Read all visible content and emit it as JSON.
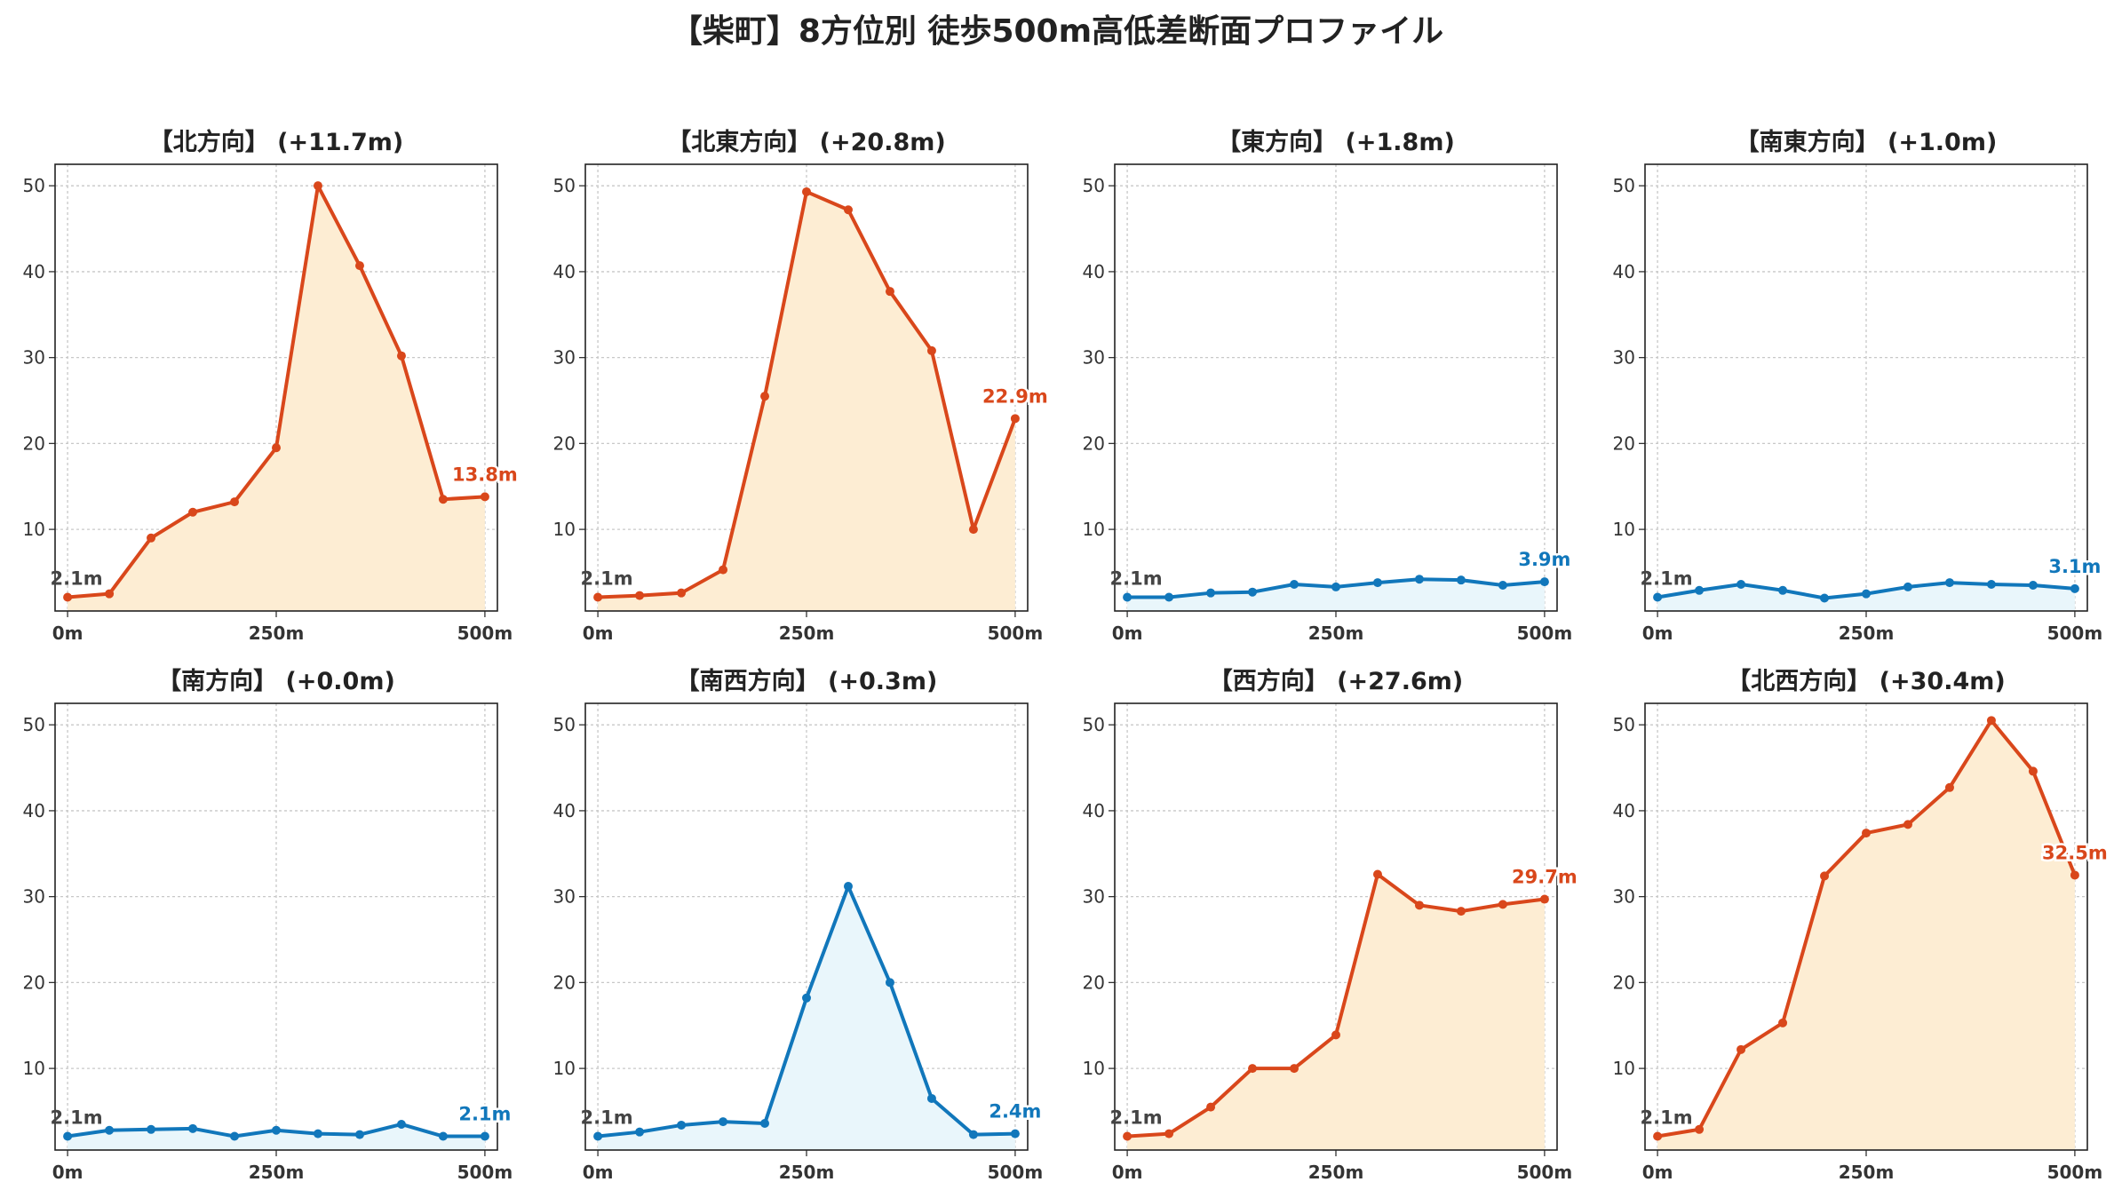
{
  "title": "【柴町】8方位別 徒歩500m高低差断面プロファイル",
  "colors": {
    "up_line": "#d9471b",
    "up_fill": "#fdedd3",
    "flat_line": "#1177bb",
    "flat_fill": "#e9f6fb",
    "start_label": "#444444"
  },
  "chart_data": [
    {
      "type": "line",
      "title": "【北方向】 (+11.7m)",
      "trend": "up",
      "x": [
        0,
        50,
        100,
        150,
        200,
        250,
        300,
        350,
        400,
        450,
        500
      ],
      "y": [
        2.1,
        2.5,
        9.0,
        12.0,
        13.2,
        19.5,
        50.0,
        40.7,
        30.2,
        13.5,
        13.8
      ],
      "start_label": "2.1m",
      "end_label": "13.8m",
      "xticks": [
        "0m",
        "250m",
        "500m"
      ],
      "yticks": [
        10,
        20,
        30,
        40,
        50
      ],
      "xlim": [
        -15,
        515
      ],
      "ylim": [
        0.5,
        52.5
      ],
      "grid": true
    },
    {
      "type": "line",
      "title": "【北東方向】 (+20.8m)",
      "trend": "up",
      "x": [
        0,
        50,
        100,
        150,
        200,
        250,
        300,
        350,
        400,
        450,
        500
      ],
      "y": [
        2.1,
        2.3,
        2.6,
        5.3,
        25.5,
        49.3,
        47.2,
        37.7,
        30.8,
        10.0,
        22.9
      ],
      "start_label": "2.1m",
      "end_label": "22.9m",
      "xticks": [
        "0m",
        "250m",
        "500m"
      ],
      "yticks": [
        10,
        20,
        30,
        40,
        50
      ],
      "xlim": [
        -15,
        515
      ],
      "ylim": [
        0.5,
        52.5
      ],
      "grid": true
    },
    {
      "type": "line",
      "title": "【東方向】 (+1.8m)",
      "trend": "flat",
      "x": [
        0,
        50,
        100,
        150,
        200,
        250,
        300,
        350,
        400,
        450,
        500
      ],
      "y": [
        2.1,
        2.1,
        2.6,
        2.7,
        3.6,
        3.3,
        3.8,
        4.2,
        4.1,
        3.5,
        3.9
      ],
      "start_label": "2.1m",
      "end_label": "3.9m",
      "xticks": [
        "0m",
        "250m",
        "500m"
      ],
      "yticks": [
        10,
        20,
        30,
        40,
        50
      ],
      "xlim": [
        -15,
        515
      ],
      "ylim": [
        0.5,
        52.5
      ],
      "grid": true
    },
    {
      "type": "line",
      "title": "【南東方向】 (+1.0m)",
      "trend": "flat",
      "x": [
        0,
        50,
        100,
        150,
        200,
        250,
        300,
        350,
        400,
        450,
        500
      ],
      "y": [
        2.1,
        2.9,
        3.6,
        2.9,
        2.0,
        2.5,
        3.3,
        3.8,
        3.6,
        3.5,
        3.1
      ],
      "start_label": "2.1m",
      "end_label": "3.1m",
      "xticks": [
        "0m",
        "250m",
        "500m"
      ],
      "yticks": [
        10,
        20,
        30,
        40,
        50
      ],
      "xlim": [
        -15,
        515
      ],
      "ylim": [
        0.5,
        52.5
      ],
      "grid": true
    },
    {
      "type": "line",
      "title": "【南方向】 (+0.0m)",
      "trend": "flat",
      "x": [
        0,
        50,
        100,
        150,
        200,
        250,
        300,
        350,
        400,
        450,
        500
      ],
      "y": [
        2.1,
        2.8,
        2.9,
        3.0,
        2.1,
        2.8,
        2.4,
        2.3,
        3.5,
        2.1,
        2.1
      ],
      "start_label": "2.1m",
      "end_label": "2.1m",
      "xticks": [
        "0m",
        "250m",
        "500m"
      ],
      "yticks": [
        10,
        20,
        30,
        40,
        50
      ],
      "xlim": [
        -15,
        515
      ],
      "ylim": [
        0.5,
        52.5
      ],
      "grid": true
    },
    {
      "type": "line",
      "title": "【南西方向】 (+0.3m)",
      "trend": "flat",
      "x": [
        0,
        50,
        100,
        150,
        200,
        250,
        300,
        350,
        400,
        450,
        500
      ],
      "y": [
        2.1,
        2.6,
        3.4,
        3.8,
        3.6,
        18.2,
        31.2,
        20.0,
        6.5,
        2.3,
        2.4
      ],
      "start_label": "2.1m",
      "end_label": "2.4m",
      "xticks": [
        "0m",
        "250m",
        "500m"
      ],
      "yticks": [
        10,
        20,
        30,
        40,
        50
      ],
      "xlim": [
        -15,
        515
      ],
      "ylim": [
        0.5,
        52.5
      ],
      "grid": true
    },
    {
      "type": "line",
      "title": "【西方向】 (+27.6m)",
      "trend": "up",
      "x": [
        0,
        50,
        100,
        150,
        200,
        250,
        300,
        350,
        400,
        450,
        500
      ],
      "y": [
        2.1,
        2.4,
        5.5,
        10.0,
        10.0,
        13.9,
        32.6,
        29.0,
        28.3,
        29.1,
        29.7
      ],
      "start_label": "2.1m",
      "end_label": "29.7m",
      "xticks": [
        "0m",
        "250m",
        "500m"
      ],
      "yticks": [
        10,
        20,
        30,
        40,
        50
      ],
      "xlim": [
        -15,
        515
      ],
      "ylim": [
        0.5,
        52.5
      ],
      "grid": true
    },
    {
      "type": "line",
      "title": "【北西方向】 (+30.4m)",
      "trend": "up",
      "x": [
        0,
        50,
        100,
        150,
        200,
        250,
        300,
        350,
        400,
        450,
        500
      ],
      "y": [
        2.1,
        2.9,
        12.2,
        15.3,
        32.4,
        37.4,
        38.4,
        42.7,
        50.5,
        44.6,
        32.5
      ],
      "start_label": "2.1m",
      "end_label": "32.5m",
      "xticks": [
        "0m",
        "250m",
        "500m"
      ],
      "yticks": [
        10,
        20,
        30,
        40,
        50
      ],
      "xlim": [
        -15,
        515
      ],
      "ylim": [
        0.5,
        52.5
      ],
      "grid": true
    }
  ]
}
